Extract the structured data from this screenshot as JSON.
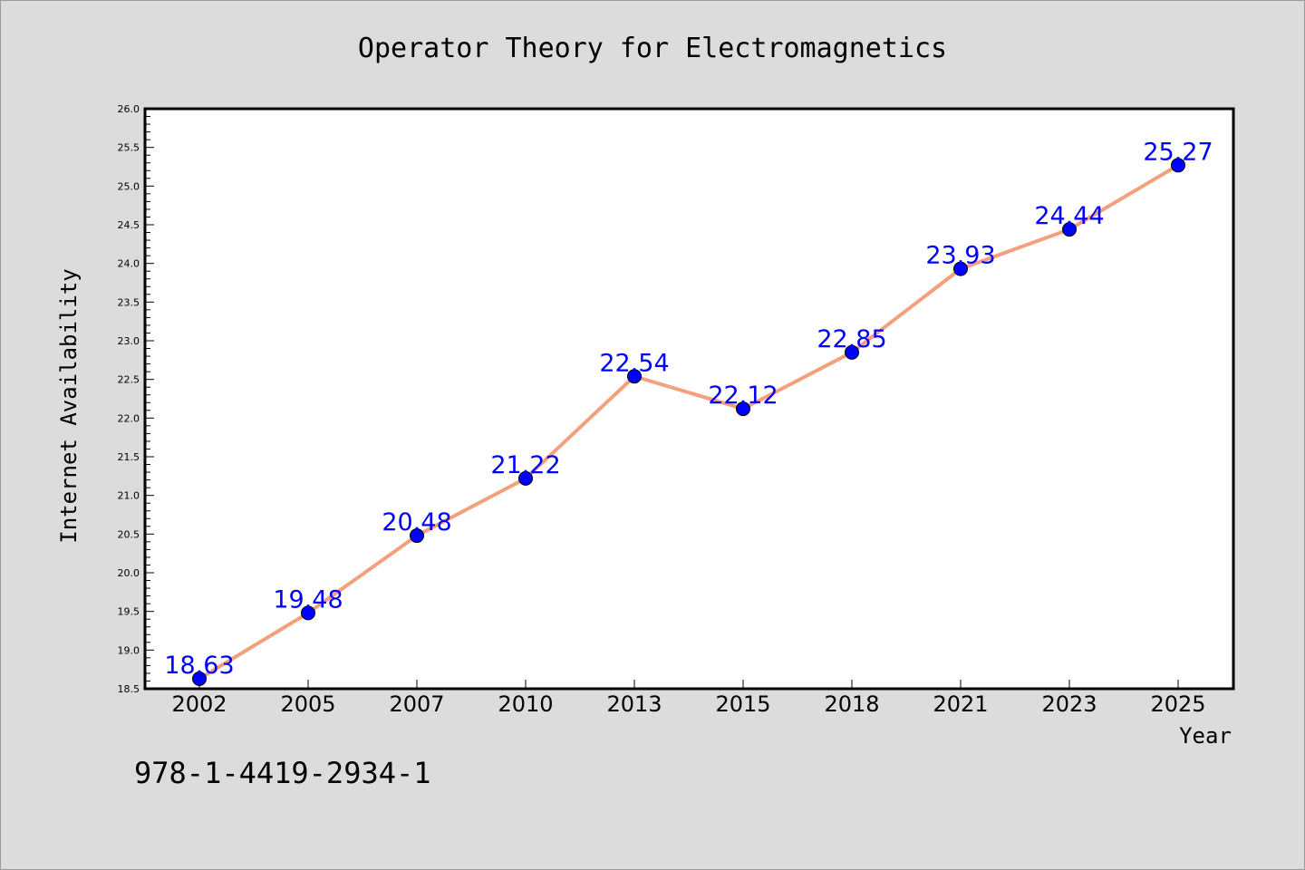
{
  "chart_data": {
    "type": "line",
    "title": "Operator Theory for Electromagnetics",
    "xlabel": "Year",
    "ylabel": "Internet Availability",
    "categories": [
      "2002",
      "2005",
      "2007",
      "2010",
      "2013",
      "2015",
      "2018",
      "2021",
      "2023",
      "2025"
    ],
    "series": [
      {
        "values": [
          18.63,
          19.48,
          20.48,
          21.22,
          22.54,
          22.12,
          22.85,
          23.93,
          24.44,
          25.27
        ],
        "line_color": "#f4a07c",
        "marker_color": "#0000ff"
      }
    ],
    "data_labels": [
      "18.63",
      "19.48",
      "20.48",
      "21.22",
      "22.54",
      "22.12",
      "22.85",
      "23.93",
      "24.44",
      "25.27"
    ],
    "ylim": [
      18.5,
      26.0
    ],
    "yticks": [
      "18.5",
      "19.0",
      "19.5",
      "20.0",
      "20.5",
      "21.0",
      "21.5",
      "22.0",
      "22.5",
      "23.0",
      "23.5",
      "24.0",
      "24.5",
      "25.0",
      "25.5",
      "26.0"
    ],
    "grid": false,
    "legend": "none"
  },
  "footer": {
    "isbn": "978-1-4419-2934-1"
  },
  "colors": {
    "background": "#dcdcdc",
    "plot_background": "#ffffff",
    "line": "#f4a07c",
    "marker": "#0000ff",
    "data_label": "#0000ff"
  }
}
